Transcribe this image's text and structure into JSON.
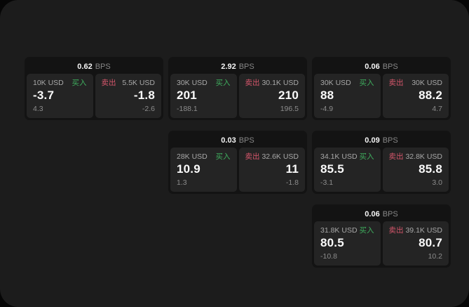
{
  "labels": {
    "buy": "买入",
    "sell": "卖出",
    "bps": "BPS"
  },
  "colors": {
    "window_bg": "#1c1c1c",
    "card_bg": "#131313",
    "tile_bg": "#242424",
    "buy_green": "#3fae5e",
    "sell_red": "#d5566b",
    "value_white": "#fafafa",
    "muted_gray": "#8c8c8c"
  },
  "cards": [
    {
      "bps": "0.62",
      "buy": {
        "size": "10K USD",
        "value": "-3.7",
        "sub": "4.3"
      },
      "sell": {
        "size": "5.5K USD",
        "value": "-1.8",
        "sub": "-2.6"
      }
    },
    {
      "bps": "2.92",
      "buy": {
        "size": "30K USD",
        "value": "201",
        "sub": "-188.1"
      },
      "sell": {
        "size": "30.1K USD",
        "value": "210",
        "sub": "196.5"
      }
    },
    {
      "bps": "0.06",
      "buy": {
        "size": "30K USD",
        "value": "88",
        "sub": "-4.9"
      },
      "sell": {
        "size": "30K USD",
        "value": "88.2",
        "sub": "4.7"
      }
    },
    {
      "bps": "0.03",
      "buy": {
        "size": "28K USD",
        "value": "10.9",
        "sub": "1.3"
      },
      "sell": {
        "size": "32.6K USD",
        "value": "11",
        "sub": "-1.8"
      }
    },
    {
      "bps": "0.09",
      "buy": {
        "size": "34.1K USD",
        "value": "85.5",
        "sub": "-3.1"
      },
      "sell": {
        "size": "32.8K USD",
        "value": "85.8",
        "sub": "3.0"
      }
    },
    {
      "bps": "0.06",
      "buy": {
        "size": "31.8K USD",
        "value": "80.5",
        "sub": "-10.8"
      },
      "sell": {
        "size": "39.1K USD",
        "value": "80.7",
        "sub": "10.2"
      }
    }
  ]
}
